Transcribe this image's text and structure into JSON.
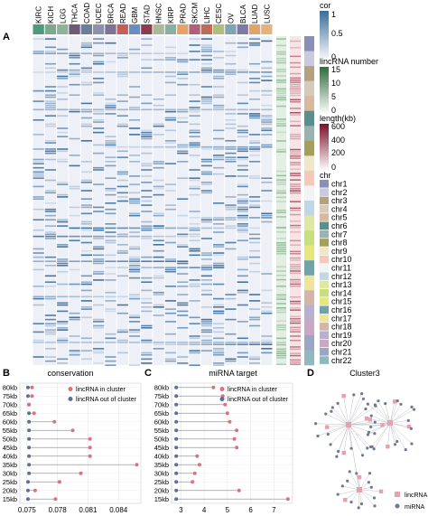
{
  "panels": {
    "A": "A",
    "B": "B",
    "C": "C",
    "D": "D"
  },
  "heatmap": {
    "cancer_types": [
      "KIRC",
      "KICH",
      "LGG",
      "THCA",
      "COAD",
      "UCEC",
      "BRCA",
      "READ",
      "GBM",
      "STAD",
      "HNSC",
      "KIRP",
      "PRAD",
      "SKCM",
      "LIHC",
      "CESC",
      "OV",
      "BLCA",
      "LUAD",
      "LUSC"
    ],
    "header_colors": [
      "#4e9a7c",
      "#7fa88f",
      "#8eb39a",
      "#6f5a78",
      "#6c7e9a",
      "#8f8fb0",
      "#7e7396",
      "#c65f5a",
      "#6a8ec0",
      "#8c3c4a",
      "#a9b99a",
      "#89b0a4",
      "#e3a36b",
      "#b0607a",
      "#bf6b5a",
      "#b0bd7c",
      "#7fa5b3",
      "#7e7aa6",
      "#e0a36b",
      "#e8b07a"
    ]
  },
  "legends": {
    "cor": {
      "title": "cor",
      "ticks": [
        "1",
        "0.5",
        "0"
      ],
      "colors": [
        "#3a6d9c",
        "#ffffff"
      ]
    },
    "lincrna_number": {
      "title": "lincRNA number",
      "ticks": [
        "15",
        "10",
        "5",
        "0"
      ],
      "colors": [
        "#2f6a3c",
        "#ffffff"
      ]
    },
    "length": {
      "title": "length(kb)",
      "ticks": [
        "600",
        "400",
        "200",
        "0"
      ],
      "colors": [
        "#7a0f2a",
        "#ffffff"
      ]
    },
    "chr": {
      "title": "chr",
      "items": [
        {
          "label": "chr1",
          "color": "#8b8fb8"
        },
        {
          "label": "chr2",
          "color": "#c9c9e0"
        },
        {
          "label": "chr3",
          "color": "#b7a07e"
        },
        {
          "label": "chr4",
          "color": "#d6cbb8"
        },
        {
          "label": "chr5",
          "color": "#d8b99e"
        },
        {
          "label": "chr6",
          "color": "#5a8f8f"
        },
        {
          "label": "chr7",
          "color": "#9ab3b0"
        },
        {
          "label": "chr8",
          "color": "#a4a05a"
        },
        {
          "label": "chr9",
          "color": "#f0e7c8"
        },
        {
          "label": "chr10",
          "color": "#f5c9b8"
        },
        {
          "label": "chr11",
          "color": "#f1f3f4"
        },
        {
          "label": "chr12",
          "color": "#bfd8e8"
        },
        {
          "label": "chr13",
          "color": "#dfe8a0"
        },
        {
          "label": "chr14",
          "color": "#c8e07a"
        },
        {
          "label": "chr15",
          "color": "#e8e87a"
        },
        {
          "label": "chr16",
          "color": "#6ea3ae"
        },
        {
          "label": "chr17",
          "color": "#efe59a"
        },
        {
          "label": "chr18",
          "color": "#d6b4a8"
        },
        {
          "label": "chr19",
          "color": "#b9b0d0"
        },
        {
          "label": "chr20",
          "color": "#c9a8c4"
        },
        {
          "label": "chr21",
          "color": "#9aa6c8"
        },
        {
          "label": "chr22",
          "color": "#8fb8c0"
        }
      ]
    }
  },
  "chart_data": [
    {
      "type": "scatter",
      "title": "conservation",
      "categories": [
        "80kb",
        "75kb",
        "70kb",
        "65kb",
        "60kb",
        "55kb",
        "50kb",
        "45kb",
        "40kb",
        "35kb",
        "30kb",
        "25kb",
        "20kb",
        "15kb"
      ],
      "series": [
        {
          "name": "lincRNA in cluster",
          "color": "#d9737f",
          "values": [
            0.0755,
            0.0755,
            0.0752,
            0.0757,
            0.0777,
            0.0795,
            0.0812,
            0.0812,
            0.0812,
            0.0858,
            0.0803,
            0.0782,
            0.0758,
            0.0778
          ]
        },
        {
          "name": "lincRNA out of cluster",
          "color": "#5b6f9c",
          "values": [
            0.0751,
            0.0751,
            0.0752,
            0.0752,
            0.0752,
            0.0752,
            0.0752,
            0.0752,
            0.0752,
            0.0752,
            0.0752,
            0.0751,
            0.0751,
            0.0751
          ]
        }
      ],
      "xticks": [
        "0.075",
        "0.078",
        "0.081",
        "0.084"
      ],
      "xlim": [
        0.0743,
        0.0862
      ],
      "grid": true,
      "legend": "top-right"
    },
    {
      "type": "scatter",
      "title": "miRNA target",
      "categories": [
        "80kb",
        "75kb",
        "70kb",
        "65kb",
        "60kb",
        "55kb",
        "50kb",
        "45kb",
        "40kb",
        "35kb",
        "30kb",
        "25kb",
        "20kb",
        "15kb"
      ],
      "series": [
        {
          "name": "lincRNA in cluster",
          "color": "#d9737f",
          "values": [
            4.4,
            4.8,
            4.9,
            5.0,
            5.1,
            5.4,
            5.3,
            5.4,
            3.7,
            3.8,
            3.6,
            3.5,
            5.5,
            7.6
          ]
        },
        {
          "name": "lincRNA out of cluster",
          "color": "#5b6f9c",
          "values": [
            2.8,
            2.8,
            2.8,
            2.8,
            2.8,
            2.8,
            2.8,
            2.8,
            2.8,
            2.8,
            2.8,
            2.8,
            2.8,
            2.8
          ]
        }
      ],
      "xticks": [
        "3",
        "4",
        "5",
        "6",
        "7"
      ],
      "xlim": [
        2.6,
        7.8
      ],
      "grid": true,
      "legend": "top-right"
    }
  ],
  "network": {
    "title": "Cluster3",
    "legend": [
      {
        "label": "lincRNA",
        "color": "#e4a2ab",
        "shape": "square"
      },
      {
        "label": "miRNA",
        "color": "#6f7894",
        "shape": "circle"
      }
    ]
  }
}
